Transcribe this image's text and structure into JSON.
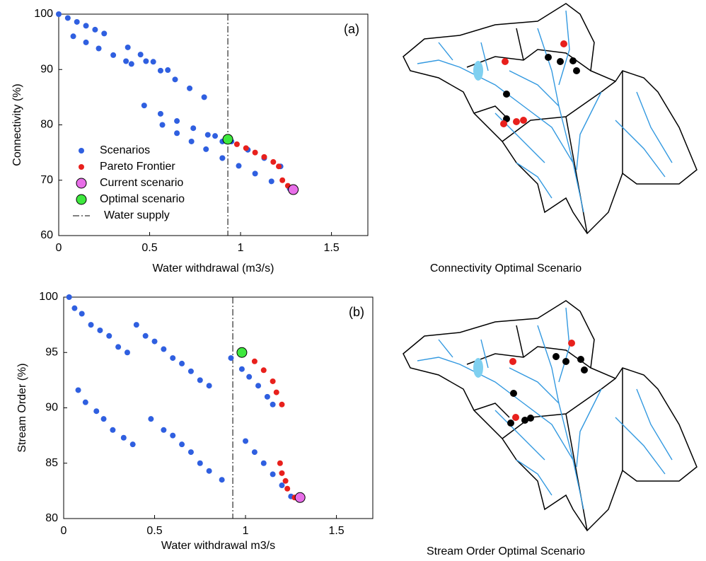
{
  "chart_data": [
    {
      "type": "scatter",
      "panel_label": "(a)",
      "xlabel": "Water withdrawal (m3/s)",
      "ylabel": "Connectivity (%)",
      "xlim": [
        0,
        1.7
      ],
      "ylim": [
        60,
        100
      ],
      "xticks": [
        0,
        0.5,
        1,
        1.5
      ],
      "yticks": [
        60,
        70,
        80,
        90,
        100
      ],
      "legend": "lower left",
      "vline": {
        "x": 0.93,
        "name": "Water supply"
      },
      "series": [
        {
          "name": "Scenarios",
          "color": "#2f5fe0",
          "x": [
            0,
            0.05,
            0.1,
            0.15,
            0.2,
            0.25,
            0.08,
            0.15,
            0.22,
            0.3,
            0.37,
            0.4,
            0.38,
            0.45,
            0.52,
            0.6,
            0.48,
            0.56,
            0.64,
            0.72,
            0.8,
            0.47,
            0.56,
            0.65,
            0.74,
            0.82,
            0.9,
            0.57,
            0.65,
            0.73,
            0.81,
            0.9,
            0.86,
            0.95,
            1.04,
            1.13,
            1.22,
            0.9,
            0.99,
            1.08,
            1.17,
            1.27
          ],
          "values": [
            100,
            99.3,
            98.6,
            97.9,
            97.2,
            96.5,
            96,
            94.9,
            93.8,
            92.6,
            91.5,
            91,
            94,
            92.7,
            91.4,
            89.9,
            91.5,
            89.8,
            88.2,
            86.6,
            85,
            83.5,
            82,
            80.7,
            79.4,
            78.2,
            77,
            80,
            78.5,
            77,
            75.6,
            74,
            78,
            77,
            75.5,
            74,
            72.5,
            74,
            72.6,
            71.2,
            69.8,
            68.5
          ]
        },
        {
          "name": "Pareto Frontier",
          "color": "#e8201c",
          "x": [
            0.93,
            0.98,
            1.03,
            1.08,
            1.13,
            1.18,
            1.21,
            1.23,
            1.26,
            1.28
          ],
          "values": [
            77.5,
            76.5,
            75.8,
            75,
            74.2,
            73.3,
            72.5,
            70,
            69,
            68.5
          ]
        },
        {
          "name": "Current scenario",
          "color": "#e86ee8",
          "x": [
            1.29
          ],
          "values": [
            68.3
          ]
        },
        {
          "name": "Optimal scenario",
          "color": "#3ee83e",
          "x": [
            0.93
          ],
          "values": [
            77.4
          ]
        }
      ]
    },
    {
      "type": "scatter",
      "panel_label": "(b)",
      "xlabel": "Water withdrawal m3/s",
      "ylabel": "Stream Order (%)",
      "xlim": [
        0,
        1.7
      ],
      "ylim": [
        80,
        100
      ],
      "xticks": [
        0,
        0.5,
        1,
        1.5
      ],
      "yticks": [
        80,
        85,
        90,
        95,
        100
      ],
      "vline": {
        "x": 0.93
      },
      "series": [
        {
          "color": "#2f5fe0",
          "x": [
            0.03,
            0.06,
            0.1,
            0.15,
            0.2,
            0.25,
            0.3,
            0.35,
            0.4,
            0.45,
            0.5,
            0.55,
            0.6,
            0.65,
            0.7,
            0.75,
            0.8,
            0.92,
            0.98,
            1.02,
            1.07,
            1.12,
            1.15,
            0.08,
            0.12,
            0.18,
            0.22,
            0.27,
            0.33,
            0.38,
            0.48,
            0.55,
            0.6,
            0.65,
            0.7,
            0.75,
            0.8,
            0.87,
            1,
            1.05,
            1.1,
            1.15,
            1.2,
            1.25
          ],
          "values": [
            100,
            99,
            98.5,
            97.5,
            97,
            96.5,
            95.5,
            95,
            97.5,
            96.5,
            96,
            95.3,
            94.5,
            94,
            93.3,
            92.5,
            92,
            94.5,
            93.5,
            92.8,
            92,
            91,
            90.3,
            91.6,
            90.5,
            89.7,
            89,
            88,
            87.3,
            86.7,
            89,
            88,
            87.5,
            86.7,
            86,
            85,
            84.3,
            83.5,
            87,
            86,
            85,
            84,
            83,
            82
          ]
        },
        {
          "color": "#e8201c",
          "x": [
            0.98,
            1.05,
            1.1,
            1.15,
            1.17,
            1.2,
            1.19,
            1.2,
            1.22,
            1.23,
            1.27
          ],
          "values": [
            95,
            94.2,
            93.4,
            92.4,
            91.4,
            90.3,
            85,
            84.1,
            83.4,
            82.7,
            81.9
          ]
        },
        {
          "color": "#e86ee8",
          "x": [
            1.3
          ],
          "values": [
            81.9
          ]
        },
        {
          "color": "#3ee83e",
          "x": [
            0.98
          ],
          "values": [
            95
          ]
        }
      ]
    }
  ],
  "maps": [
    {
      "caption": "Connectivity Optimal Scenario"
    },
    {
      "caption": "Stream Order Optimal Scenario"
    }
  ]
}
